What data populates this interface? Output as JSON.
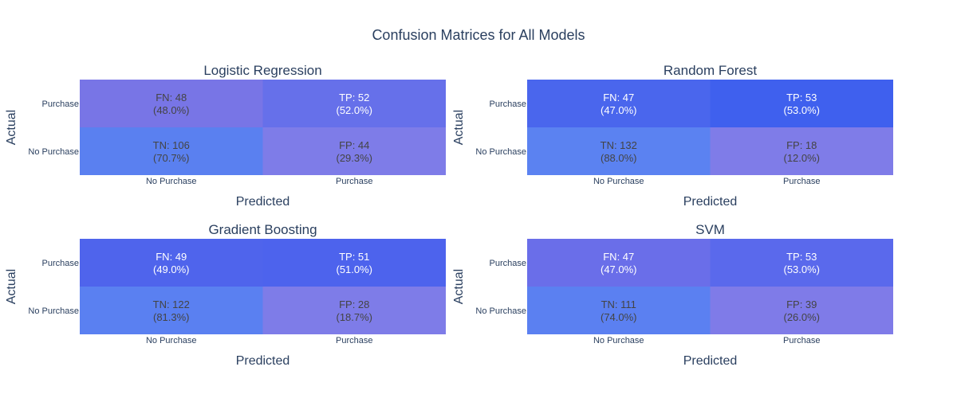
{
  "figure": {
    "title": "Confusion Matrices for All Models"
  },
  "chart_data": [
    {
      "type": "heatmap",
      "title": "Logistic Regression",
      "xlabel": "Predicted",
      "ylabel": "Actual",
      "x_categories": [
        "No Purchase",
        "Purchase"
      ],
      "y_categories": [
        "No Purchase",
        "Purchase"
      ],
      "cells": [
        {
          "actual": "No Purchase",
          "predicted": "No Purchase",
          "label": "TN",
          "count": 106,
          "percent": "70.7%",
          "color": "#5a80f0",
          "text_color": "#444444"
        },
        {
          "actual": "No Purchase",
          "predicted": "Purchase",
          "label": "FP",
          "count": 44,
          "percent": "29.3%",
          "color": "#7e7ce8",
          "text_color": "#444444"
        },
        {
          "actual": "Purchase",
          "predicted": "No Purchase",
          "label": "FN",
          "count": 48,
          "percent": "48.0%",
          "color": "#7875e6",
          "text_color": "#444444"
        },
        {
          "actual": "Purchase",
          "predicted": "Purchase",
          "label": "TP",
          "count": 52,
          "percent": "52.0%",
          "color": "#6670ea",
          "text_color": "#ffffff"
        }
      ]
    },
    {
      "type": "heatmap",
      "title": "Random Forest",
      "xlabel": "Predicted",
      "ylabel": "Actual",
      "x_categories": [
        "No Purchase",
        "Purchase"
      ],
      "y_categories": [
        "No Purchase",
        "Purchase"
      ],
      "cells": [
        {
          "actual": "No Purchase",
          "predicted": "No Purchase",
          "label": "TN",
          "count": 132,
          "percent": "88.0%",
          "color": "#5b82f1",
          "text_color": "#444444"
        },
        {
          "actual": "No Purchase",
          "predicted": "Purchase",
          "label": "FP",
          "count": 18,
          "percent": "12.0%",
          "color": "#7f7ce8",
          "text_color": "#444444"
        },
        {
          "actual": "Purchase",
          "predicted": "No Purchase",
          "label": "FN",
          "count": 47,
          "percent": "47.0%",
          "color": "#4a66ed",
          "text_color": "#ffffff"
        },
        {
          "actual": "Purchase",
          "predicted": "Purchase",
          "label": "TP",
          "count": 53,
          "percent": "53.0%",
          "color": "#3f60ee",
          "text_color": "#ffffff"
        }
      ]
    },
    {
      "type": "heatmap",
      "title": "Gradient Boosting",
      "xlabel": "Predicted",
      "ylabel": "Actual",
      "x_categories": [
        "No Purchase",
        "Purchase"
      ],
      "y_categories": [
        "No Purchase",
        "Purchase"
      ],
      "cells": [
        {
          "actual": "No Purchase",
          "predicted": "No Purchase",
          "label": "TN",
          "count": 122,
          "percent": "81.3%",
          "color": "#5a80f1",
          "text_color": "#444444"
        },
        {
          "actual": "No Purchase",
          "predicted": "Purchase",
          "label": "FP",
          "count": 28,
          "percent": "18.7%",
          "color": "#7e7ce8",
          "text_color": "#444444"
        },
        {
          "actual": "Purchase",
          "predicted": "No Purchase",
          "label": "FN",
          "count": 49,
          "percent": "49.0%",
          "color": "#4f64ec",
          "text_color": "#ffffff"
        },
        {
          "actual": "Purchase",
          "predicted": "Purchase",
          "label": "TP",
          "count": 51,
          "percent": "51.0%",
          "color": "#4d63ed",
          "text_color": "#ffffff"
        }
      ]
    },
    {
      "type": "heatmap",
      "title": "SVM",
      "xlabel": "Predicted",
      "ylabel": "Actual",
      "x_categories": [
        "No Purchase",
        "Purchase"
      ],
      "y_categories": [
        "No Purchase",
        "Purchase"
      ],
      "cells": [
        {
          "actual": "No Purchase",
          "predicted": "No Purchase",
          "label": "TN",
          "count": 111,
          "percent": "74.0%",
          "color": "#5b80f1",
          "text_color": "#444444"
        },
        {
          "actual": "No Purchase",
          "predicted": "Purchase",
          "label": "FP",
          "count": 39,
          "percent": "26.0%",
          "color": "#7f7be8",
          "text_color": "#444444"
        },
        {
          "actual": "Purchase",
          "predicted": "No Purchase",
          "label": "FN",
          "count": 47,
          "percent": "47.0%",
          "color": "#6a6ee9",
          "text_color": "#ffffff"
        },
        {
          "actual": "Purchase",
          "predicted": "Purchase",
          "label": "TP",
          "count": 53,
          "percent": "53.0%",
          "color": "#5a69ec",
          "text_color": "#ffffff"
        }
      ]
    }
  ]
}
